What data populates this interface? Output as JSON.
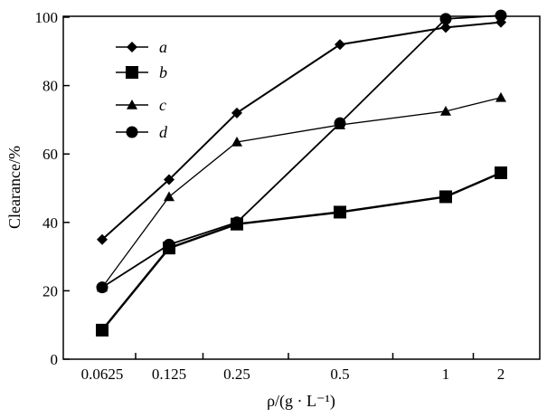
{
  "chart_data": {
    "type": "line",
    "categories": [
      "0.0625",
      "0.125",
      "0.25",
      "0.5",
      "1",
      "2"
    ],
    "series": [
      {
        "name": "a",
        "marker": "diamond",
        "values": [
          35,
          52.5,
          72,
          92,
          97,
          98.5
        ]
      },
      {
        "name": "b",
        "marker": "square",
        "values": [
          8.5,
          32.5,
          39.5,
          43,
          47.5,
          54.5
        ]
      },
      {
        "name": "c",
        "marker": "triangle",
        "values": [
          21,
          47.5,
          63.5,
          68.5,
          72.5,
          76.5
        ]
      },
      {
        "name": "d",
        "marker": "circle",
        "values": [
          21,
          33.5,
          40,
          69,
          99.5,
          100.5
        ]
      }
    ],
    "xlabel": "ρ/(g · L⁻¹)",
    "ylabel": "Clearance/%",
    "ylim": [
      0,
      100
    ],
    "yticks": [
      "0",
      "20",
      "40",
      "60",
      "80",
      "100"
    ],
    "grid": false,
    "legend_position": "top-left"
  },
  "colors": {
    "line": "#000000",
    "background": "#ffffff"
  }
}
